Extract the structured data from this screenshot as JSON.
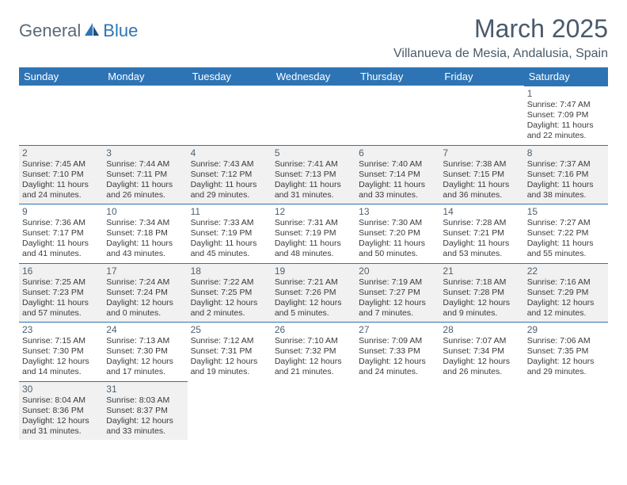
{
  "brand": {
    "part1": "General",
    "part2": "Blue"
  },
  "title": "March 2025",
  "location": "Villanueva de Mesia, Andalusia, Spain",
  "colors": {
    "header_bg": "#2e74b5",
    "header_text": "#ffffff",
    "cell_border": "#2e74b5",
    "shaded_bg": "#f1f1f1",
    "title_color": "#495a6a",
    "text_color": "#3a3a3a"
  },
  "weekdays": [
    "Sunday",
    "Monday",
    "Tuesday",
    "Wednesday",
    "Thursday",
    "Friday",
    "Saturday"
  ],
  "weeks": [
    [
      {
        "empty": true
      },
      {
        "empty": true
      },
      {
        "empty": true
      },
      {
        "empty": true
      },
      {
        "empty": true
      },
      {
        "empty": true
      },
      {
        "day": "1",
        "sunrise": "Sunrise: 7:47 AM",
        "sunset": "Sunset: 7:09 PM",
        "dl1": "Daylight: 11 hours",
        "dl2": "and 22 minutes."
      }
    ],
    [
      {
        "day": "2",
        "shaded": true,
        "sunrise": "Sunrise: 7:45 AM",
        "sunset": "Sunset: 7:10 PM",
        "dl1": "Daylight: 11 hours",
        "dl2": "and 24 minutes."
      },
      {
        "day": "3",
        "shaded": true,
        "sunrise": "Sunrise: 7:44 AM",
        "sunset": "Sunset: 7:11 PM",
        "dl1": "Daylight: 11 hours",
        "dl2": "and 26 minutes."
      },
      {
        "day": "4",
        "shaded": true,
        "sunrise": "Sunrise: 7:43 AM",
        "sunset": "Sunset: 7:12 PM",
        "dl1": "Daylight: 11 hours",
        "dl2": "and 29 minutes."
      },
      {
        "day": "5",
        "shaded": true,
        "sunrise": "Sunrise: 7:41 AM",
        "sunset": "Sunset: 7:13 PM",
        "dl1": "Daylight: 11 hours",
        "dl2": "and 31 minutes."
      },
      {
        "day": "6",
        "shaded": true,
        "sunrise": "Sunrise: 7:40 AM",
        "sunset": "Sunset: 7:14 PM",
        "dl1": "Daylight: 11 hours",
        "dl2": "and 33 minutes."
      },
      {
        "day": "7",
        "shaded": true,
        "sunrise": "Sunrise: 7:38 AM",
        "sunset": "Sunset: 7:15 PM",
        "dl1": "Daylight: 11 hours",
        "dl2": "and 36 minutes."
      },
      {
        "day": "8",
        "shaded": true,
        "sunrise": "Sunrise: 7:37 AM",
        "sunset": "Sunset: 7:16 PM",
        "dl1": "Daylight: 11 hours",
        "dl2": "and 38 minutes."
      }
    ],
    [
      {
        "day": "9",
        "sunrise": "Sunrise: 7:36 AM",
        "sunset": "Sunset: 7:17 PM",
        "dl1": "Daylight: 11 hours",
        "dl2": "and 41 minutes."
      },
      {
        "day": "10",
        "sunrise": "Sunrise: 7:34 AM",
        "sunset": "Sunset: 7:18 PM",
        "dl1": "Daylight: 11 hours",
        "dl2": "and 43 minutes."
      },
      {
        "day": "11",
        "sunrise": "Sunrise: 7:33 AM",
        "sunset": "Sunset: 7:19 PM",
        "dl1": "Daylight: 11 hours",
        "dl2": "and 45 minutes."
      },
      {
        "day": "12",
        "sunrise": "Sunrise: 7:31 AM",
        "sunset": "Sunset: 7:19 PM",
        "dl1": "Daylight: 11 hours",
        "dl2": "and 48 minutes."
      },
      {
        "day": "13",
        "sunrise": "Sunrise: 7:30 AM",
        "sunset": "Sunset: 7:20 PM",
        "dl1": "Daylight: 11 hours",
        "dl2": "and 50 minutes."
      },
      {
        "day": "14",
        "sunrise": "Sunrise: 7:28 AM",
        "sunset": "Sunset: 7:21 PM",
        "dl1": "Daylight: 11 hours",
        "dl2": "and 53 minutes."
      },
      {
        "day": "15",
        "sunrise": "Sunrise: 7:27 AM",
        "sunset": "Sunset: 7:22 PM",
        "dl1": "Daylight: 11 hours",
        "dl2": "and 55 minutes."
      }
    ],
    [
      {
        "day": "16",
        "shaded": true,
        "sunrise": "Sunrise: 7:25 AM",
        "sunset": "Sunset: 7:23 PM",
        "dl1": "Daylight: 11 hours",
        "dl2": "and 57 minutes."
      },
      {
        "day": "17",
        "shaded": true,
        "sunrise": "Sunrise: 7:24 AM",
        "sunset": "Sunset: 7:24 PM",
        "dl1": "Daylight: 12 hours",
        "dl2": "and 0 minutes."
      },
      {
        "day": "18",
        "shaded": true,
        "sunrise": "Sunrise: 7:22 AM",
        "sunset": "Sunset: 7:25 PM",
        "dl1": "Daylight: 12 hours",
        "dl2": "and 2 minutes."
      },
      {
        "day": "19",
        "shaded": true,
        "sunrise": "Sunrise: 7:21 AM",
        "sunset": "Sunset: 7:26 PM",
        "dl1": "Daylight: 12 hours",
        "dl2": "and 5 minutes."
      },
      {
        "day": "20",
        "shaded": true,
        "sunrise": "Sunrise: 7:19 AM",
        "sunset": "Sunset: 7:27 PM",
        "dl1": "Daylight: 12 hours",
        "dl2": "and 7 minutes."
      },
      {
        "day": "21",
        "shaded": true,
        "sunrise": "Sunrise: 7:18 AM",
        "sunset": "Sunset: 7:28 PM",
        "dl1": "Daylight: 12 hours",
        "dl2": "and 9 minutes."
      },
      {
        "day": "22",
        "shaded": true,
        "sunrise": "Sunrise: 7:16 AM",
        "sunset": "Sunset: 7:29 PM",
        "dl1": "Daylight: 12 hours",
        "dl2": "and 12 minutes."
      }
    ],
    [
      {
        "day": "23",
        "sunrise": "Sunrise: 7:15 AM",
        "sunset": "Sunset: 7:30 PM",
        "dl1": "Daylight: 12 hours",
        "dl2": "and 14 minutes."
      },
      {
        "day": "24",
        "sunrise": "Sunrise: 7:13 AM",
        "sunset": "Sunset: 7:30 PM",
        "dl1": "Daylight: 12 hours",
        "dl2": "and 17 minutes."
      },
      {
        "day": "25",
        "sunrise": "Sunrise: 7:12 AM",
        "sunset": "Sunset: 7:31 PM",
        "dl1": "Daylight: 12 hours",
        "dl2": "and 19 minutes."
      },
      {
        "day": "26",
        "sunrise": "Sunrise: 7:10 AM",
        "sunset": "Sunset: 7:32 PM",
        "dl1": "Daylight: 12 hours",
        "dl2": "and 21 minutes."
      },
      {
        "day": "27",
        "sunrise": "Sunrise: 7:09 AM",
        "sunset": "Sunset: 7:33 PM",
        "dl1": "Daylight: 12 hours",
        "dl2": "and 24 minutes."
      },
      {
        "day": "28",
        "sunrise": "Sunrise: 7:07 AM",
        "sunset": "Sunset: 7:34 PM",
        "dl1": "Daylight: 12 hours",
        "dl2": "and 26 minutes."
      },
      {
        "day": "29",
        "sunrise": "Sunrise: 7:06 AM",
        "sunset": "Sunset: 7:35 PM",
        "dl1": "Daylight: 12 hours",
        "dl2": "and 29 minutes."
      }
    ],
    [
      {
        "day": "30",
        "shaded": true,
        "sunrise": "Sunrise: 8:04 AM",
        "sunset": "Sunset: 8:36 PM",
        "dl1": "Daylight: 12 hours",
        "dl2": "and 31 minutes."
      },
      {
        "day": "31",
        "shaded": true,
        "sunrise": "Sunrise: 8:03 AM",
        "sunset": "Sunset: 8:37 PM",
        "dl1": "Daylight: 12 hours",
        "dl2": "and 33 minutes."
      },
      {
        "empty": true
      },
      {
        "empty": true
      },
      {
        "empty": true
      },
      {
        "empty": true
      },
      {
        "empty": true
      }
    ]
  ]
}
